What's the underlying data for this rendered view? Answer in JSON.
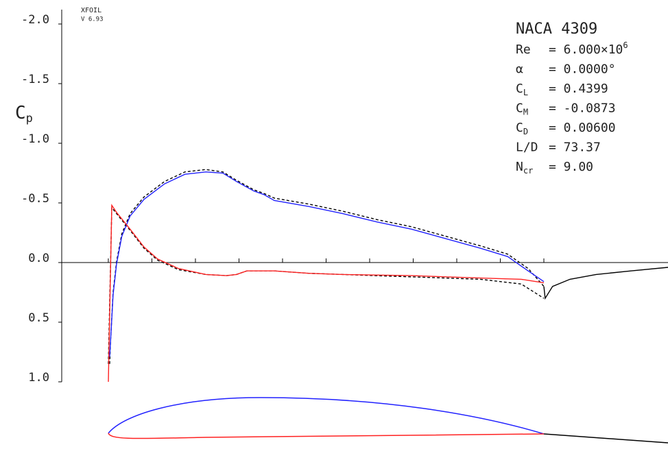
{
  "chart_data": {
    "type": "line",
    "program": "XFOIL",
    "version": "V 6.93",
    "y_label": {
      "text": "C",
      "sub": "p"
    },
    "title": "NACA 4309",
    "info": [
      {
        "name": "Re",
        "text": "= 6.000×10",
        "sup": "6"
      },
      {
        "name": "α",
        "text": "= 0.0000°"
      },
      {
        "name": "C",
        "sub": "L",
        "text": "= 0.4399"
      },
      {
        "name": "C",
        "sub": "M",
        "text": "= -0.0873"
      },
      {
        "name": "C",
        "sub": "D",
        "text": "= 0.00600"
      },
      {
        "name": "L/D",
        "text": "= 73.37"
      },
      {
        "name": "N",
        "sub": "cr",
        "text": "= 9.00"
      }
    ],
    "xlim": [
      -0.107,
      1.285
    ],
    "ylim": [
      -2.0,
      1.0
    ],
    "y_inverted": true,
    "xticks": [
      0,
      0.1,
      0.2,
      0.3,
      0.4,
      0.5,
      0.6,
      0.7,
      0.8,
      0.9,
      1.0
    ],
    "yticks": [
      {
        "value": -2.0,
        "label": "-2.0"
      },
      {
        "value": -1.5,
        "label": "-1.5"
      },
      {
        "value": -1.0,
        "label": "-1.0"
      },
      {
        "value": -0.5,
        "label": "-0.5"
      },
      {
        "value": 0.0,
        "label": "0.0"
      },
      {
        "value": 0.5,
        "label": "0.5"
      },
      {
        "value": 1.0,
        "label": "1.0"
      }
    ],
    "series": [
      {
        "color": "#000000",
        "dash": true,
        "x": [
          0.003,
          0.005,
          0.011,
          0.019,
          0.031,
          0.05,
          0.082,
          0.129,
          0.176,
          0.224,
          0.263,
          0.294,
          0.334,
          0.357,
          0.381,
          0.46,
          0.539,
          0.617,
          0.696,
          0.775,
          0.854,
          0.917,
          0.964,
          1.0
        ],
        "values": [
          0.85,
          0.67,
          0.25,
          -0.01,
          -0.24,
          -0.41,
          -0.55,
          -0.68,
          -0.76,
          -0.78,
          -0.76,
          -0.69,
          -0.61,
          -0.58,
          -0.54,
          -0.49,
          -0.43,
          -0.36,
          -0.3,
          -0.22,
          -0.14,
          -0.07,
          0.05,
          0.2
        ]
      },
      {
        "color": "#000000",
        "dash": true,
        "x": [
          0.0,
          0.008,
          0.019,
          0.05,
          0.082,
          0.113,
          0.161,
          0.224,
          0.271,
          0.294,
          0.318,
          0.381,
          0.46,
          0.539,
          0.696,
          0.854,
          0.948,
          1.0
        ],
        "values": [
          0.85,
          -0.46,
          -0.41,
          -0.27,
          -0.12,
          -0.02,
          0.06,
          0.1,
          0.11,
          0.1,
          0.07,
          0.07,
          0.09,
          0.1,
          0.12,
          0.14,
          0.18,
          0.3
        ]
      },
      {
        "color": "#2020ff",
        "x": [
          0.003,
          0.005,
          0.011,
          0.019,
          0.031,
          0.05,
          0.082,
          0.129,
          0.176,
          0.224,
          0.263,
          0.294,
          0.334,
          0.357,
          0.381,
          0.46,
          0.539,
          0.617,
          0.696,
          0.775,
          0.854,
          0.917,
          0.964,
          1.0
        ],
        "values": [
          0.79,
          0.67,
          0.27,
          0.01,
          -0.22,
          -0.39,
          -0.53,
          -0.66,
          -0.74,
          -0.76,
          -0.75,
          -0.68,
          -0.6,
          -0.57,
          -0.52,
          -0.47,
          -0.41,
          -0.34,
          -0.28,
          -0.2,
          -0.12,
          -0.05,
          0.07,
          0.16
        ]
      },
      {
        "color": "#ff2020",
        "x": [
          0.0,
          0.008,
          0.019,
          0.05,
          0.082,
          0.113,
          0.161,
          0.224,
          0.271,
          0.294,
          0.318,
          0.381,
          0.46,
          0.539,
          0.696,
          0.854,
          0.948,
          1.0
        ],
        "values": [
          1.0,
          -0.48,
          -0.42,
          -0.28,
          -0.13,
          -0.03,
          0.05,
          0.1,
          0.11,
          0.1,
          0.07,
          0.07,
          0.09,
          0.1,
          0.11,
          0.13,
          0.14,
          0.17
        ]
      },
      {
        "color": "#000000",
        "x": [
          1.0,
          1.003,
          1.02,
          1.06,
          1.12,
          1.2,
          1.285
        ],
        "values": [
          0.2,
          0.3,
          0.2,
          0.14,
          0.1,
          0.07,
          0.04
        ]
      }
    ]
  }
}
